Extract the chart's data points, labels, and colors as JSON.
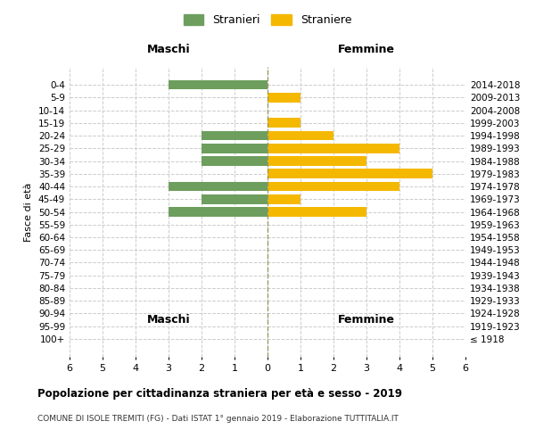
{
  "age_groups": [
    "100+",
    "95-99",
    "90-94",
    "85-89",
    "80-84",
    "75-79",
    "70-74",
    "65-69",
    "60-64",
    "55-59",
    "50-54",
    "45-49",
    "40-44",
    "35-39",
    "30-34",
    "25-29",
    "20-24",
    "15-19",
    "10-14",
    "5-9",
    "0-4"
  ],
  "birth_years": [
    "≤ 1918",
    "1919-1923",
    "1924-1928",
    "1929-1933",
    "1934-1938",
    "1939-1943",
    "1944-1948",
    "1949-1953",
    "1954-1958",
    "1959-1963",
    "1964-1968",
    "1969-1973",
    "1974-1978",
    "1979-1983",
    "1984-1988",
    "1989-1993",
    "1994-1998",
    "1999-2003",
    "2004-2008",
    "2009-2013",
    "2014-2018"
  ],
  "males": [
    0,
    0,
    0,
    0,
    0,
    0,
    0,
    0,
    0,
    0,
    3,
    2,
    3,
    0,
    2,
    2,
    2,
    0,
    0,
    0,
    3
  ],
  "females": [
    0,
    0,
    0,
    0,
    0,
    0,
    0,
    0,
    0,
    0,
    3,
    1,
    4,
    5,
    3,
    4,
    2,
    1,
    0,
    1,
    0
  ],
  "male_color": "#6d9e5e",
  "female_color": "#f5b800",
  "title": "Popolazione per cittadinanza straniera per età e sesso - 2019",
  "subtitle": "COMUNE DI ISOLE TREMITI (FG) - Dati ISTAT 1° gennaio 2019 - Elaborazione TUTTITALIA.IT",
  "left_label": "Maschi",
  "right_label": "Femmine",
  "ylabel_left": "Fasce di età",
  "legend_male": "Stranieri",
  "legend_female": "Straniere",
  "xlim": 6,
  "bg_color": "#ffffff",
  "grid_color": "#cccccc",
  "bar_height": 0.75
}
